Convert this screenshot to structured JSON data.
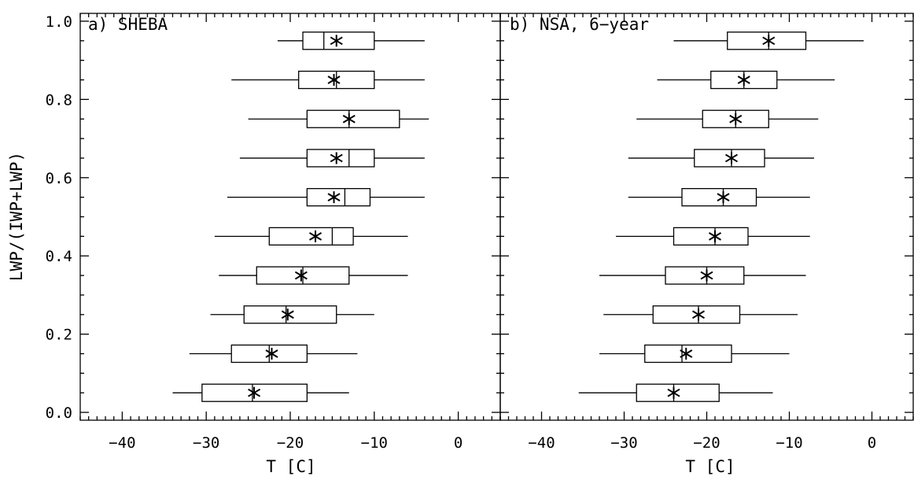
{
  "chart_data": [
    {
      "type": "boxplot",
      "title": "a) SHEBA",
      "xlabel": "T [C]",
      "ylabel": "LWP/(IWP+LWP)",
      "xlim": [
        -45,
        5
      ],
      "ylim": [
        -0.02,
        1.02
      ],
      "x_ticks": [
        -40,
        -30,
        -20,
        -10,
        0
      ],
      "x_tick_labels": [
        "−40",
        "−30",
        "−20",
        "−10",
        "0"
      ],
      "y_ticks": [
        0.0,
        0.2,
        0.4,
        0.6,
        0.8,
        1.0
      ],
      "y_tick_labels": [
        "0.0",
        "0.2",
        "0.4",
        "0.6",
        "0.8",
        "1.0"
      ],
      "boxes": [
        {
          "y": 0.05,
          "whisker_low": -34.0,
          "q1": -30.5,
          "median": -24.5,
          "q3": -18.0,
          "whisker_high": -13.0,
          "mean": -24.3
        },
        {
          "y": 0.15,
          "whisker_low": -32.0,
          "q1": -27.0,
          "median": -22.5,
          "q3": -18.0,
          "whisker_high": -12.0,
          "mean": -22.2
        },
        {
          "y": 0.25,
          "whisker_low": -29.5,
          "q1": -25.5,
          "median": -20.5,
          "q3": -14.5,
          "whisker_high": -10.0,
          "mean": -20.3
        },
        {
          "y": 0.35,
          "whisker_low": -28.5,
          "q1": -24.0,
          "median": -18.5,
          "q3": -13.0,
          "whisker_high": -6.0,
          "mean": -18.7
        },
        {
          "y": 0.45,
          "whisker_low": -29.0,
          "q1": -22.5,
          "median": -15.0,
          "q3": -12.5,
          "whisker_high": -6.0,
          "mean": -17.0
        },
        {
          "y": 0.55,
          "whisker_low": -27.5,
          "q1": -18.0,
          "median": -13.5,
          "q3": -10.5,
          "whisker_high": -4.0,
          "mean": -14.8
        },
        {
          "y": 0.65,
          "whisker_low": -26.0,
          "q1": -18.0,
          "median": -13.0,
          "q3": -10.0,
          "whisker_high": -4.0,
          "mean": -14.5
        },
        {
          "y": 0.75,
          "whisker_low": -25.0,
          "q1": -18.0,
          "median": -13.0,
          "q3": -7.0,
          "whisker_high": -3.5,
          "mean": -13.0
        },
        {
          "y": 0.85,
          "whisker_low": -27.0,
          "q1": -19.0,
          "median": -14.5,
          "q3": -10.0,
          "whisker_high": -4.0,
          "mean": -14.8
        },
        {
          "y": 0.95,
          "whisker_low": -21.5,
          "q1": -18.5,
          "median": -16.0,
          "q3": -10.0,
          "whisker_high": -4.0,
          "mean": -14.5
        }
      ]
    },
    {
      "type": "boxplot",
      "title": "b) NSA, 6−year",
      "xlabel": "T [C]",
      "ylabel": "",
      "xlim": [
        -45,
        5
      ],
      "ylim": [
        -0.02,
        1.02
      ],
      "x_ticks": [
        -40,
        -30,
        -20,
        -10,
        0
      ],
      "x_tick_labels": [
        "−40",
        "−30",
        "−20",
        "−10",
        "0"
      ],
      "y_ticks": [
        0.0,
        0.2,
        0.4,
        0.6,
        0.8,
        1.0
      ],
      "y_tick_labels": [],
      "boxes": [
        {
          "y": 0.05,
          "whisker_low": -35.5,
          "q1": -28.5,
          "median": -24.0,
          "q3": -18.5,
          "whisker_high": -12.0,
          "mean": -24.0
        },
        {
          "y": 0.15,
          "whisker_low": -33.0,
          "q1": -27.5,
          "median": -23.0,
          "q3": -17.0,
          "whisker_high": -10.0,
          "mean": -22.5
        },
        {
          "y": 0.25,
          "whisker_low": -32.5,
          "q1": -26.5,
          "median": -21.0,
          "q3": -16.0,
          "whisker_high": -9.0,
          "mean": -21.0
        },
        {
          "y": 0.35,
          "whisker_low": -33.0,
          "q1": -25.0,
          "median": -20.0,
          "q3": -15.5,
          "whisker_high": -8.0,
          "mean": -20.0
        },
        {
          "y": 0.45,
          "whisker_low": -31.0,
          "q1": -24.0,
          "median": -19.0,
          "q3": -15.0,
          "whisker_high": -7.5,
          "mean": -19.0
        },
        {
          "y": 0.55,
          "whisker_low": -29.5,
          "q1": -23.0,
          "median": -18.0,
          "q3": -14.0,
          "whisker_high": -7.5,
          "mean": -18.0
        },
        {
          "y": 0.65,
          "whisker_low": -29.5,
          "q1": -21.5,
          "median": -17.0,
          "q3": -13.0,
          "whisker_high": -7.0,
          "mean": -17.0
        },
        {
          "y": 0.75,
          "whisker_low": -28.5,
          "q1": -20.5,
          "median": -16.5,
          "q3": -12.5,
          "whisker_high": -6.5,
          "mean": -16.5
        },
        {
          "y": 0.85,
          "whisker_low": -26.0,
          "q1": -19.5,
          "median": -15.5,
          "q3": -11.5,
          "whisker_high": -4.5,
          "mean": -15.5
        },
        {
          "y": 0.95,
          "whisker_low": -24.0,
          "q1": -17.5,
          "median": -12.5,
          "q3": -8.0,
          "whisker_high": -1.0,
          "mean": -12.5
        }
      ]
    }
  ]
}
